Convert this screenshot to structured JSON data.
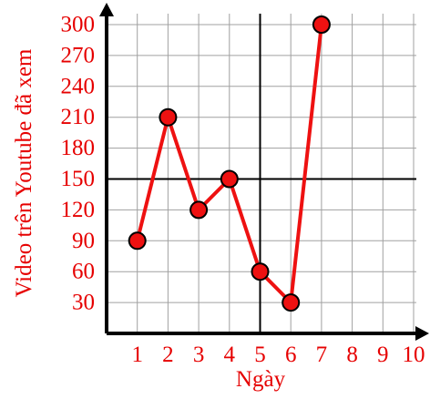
{
  "chart_data": {
    "type": "line",
    "title": "",
    "xlabel": "Ngày",
    "ylabel": "Video trên Youtube đã xem",
    "x_ticks": [
      "1",
      "2",
      "3",
      "4",
      "5",
      "6",
      "7",
      "8",
      "9",
      "10"
    ],
    "y_ticks": [
      "30",
      "60",
      "90",
      "120",
      "150",
      "180",
      "210",
      "240",
      "270",
      "300"
    ],
    "xlim": [
      0,
      10
    ],
    "ylim": [
      0,
      300
    ],
    "grid": true,
    "reference_lines": {
      "vertical_x": 5,
      "horizontal_y": 150
    },
    "series": [
      {
        "x": [
          1,
          2,
          3,
          4,
          5,
          6,
          7
        ],
        "values": [
          90,
          210,
          120,
          150,
          60,
          30,
          300
        ]
      }
    ],
    "colors": {
      "series": "#ee1111",
      "labels": "#e60000",
      "grid": "#a0a0a0",
      "axis": "#000000"
    }
  }
}
